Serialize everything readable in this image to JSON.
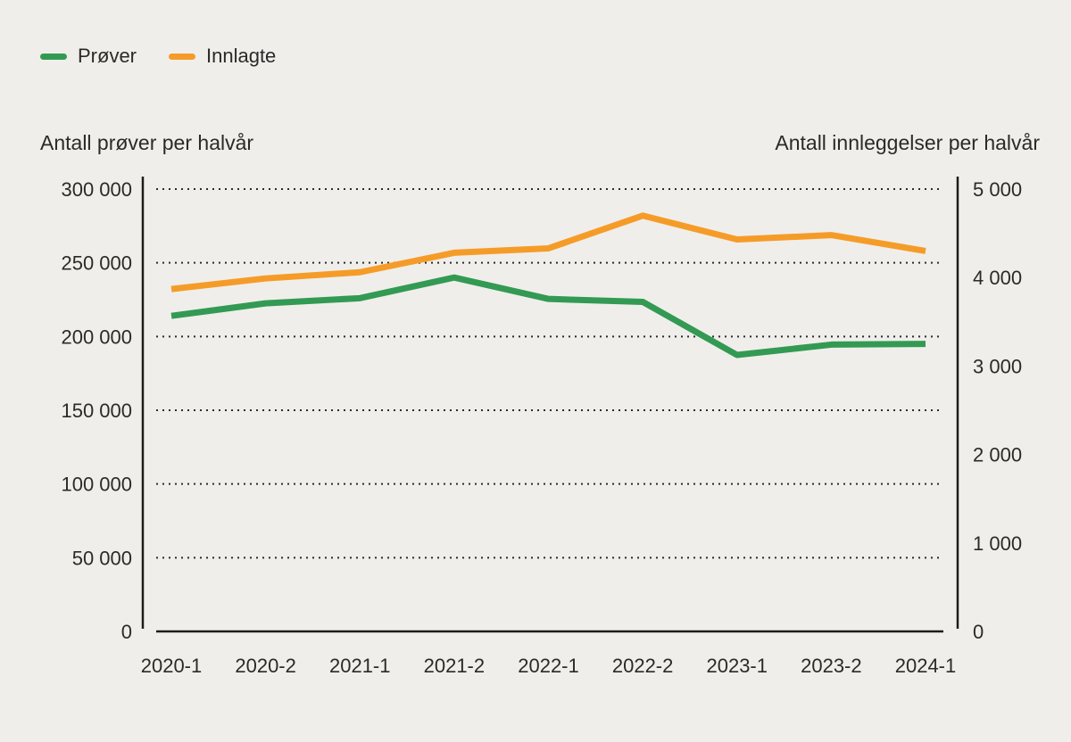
{
  "palette": {
    "background": "#F0EEEB",
    "text": "#2B2A28",
    "axis_line": "#1C1C1C",
    "grid_dot": "#2B2B2B"
  },
  "legend": {
    "position": "top-left",
    "items": [
      {
        "label": "Prøver",
        "color": "#339A53"
      },
      {
        "label": "Innlagte",
        "color": "#F59C28"
      }
    ]
  },
  "chart_data": {
    "type": "line",
    "categories": [
      "2020-1",
      "2020-2",
      "2021-1",
      "2021-2",
      "2022-1",
      "2022-2",
      "2023-1",
      "2023-2",
      "2024-1"
    ],
    "series": [
      {
        "name": "Prøver",
        "axis": "left",
        "color": "#339A53",
        "values": [
          214000,
          222500,
          226000,
          240000,
          225500,
          223500,
          187500,
          194500,
          195000
        ]
      },
      {
        "name": "Innlagte",
        "axis": "right",
        "color": "#F59C28",
        "values": [
          3870,
          3990,
          4060,
          4280,
          4330,
          4700,
          4430,
          4480,
          4300
        ]
      }
    ],
    "left_axis": {
      "title": "Antall prøver per halvår",
      "range": [
        0,
        300000
      ],
      "ticks": [
        {
          "value": 300000,
          "label": "300 000"
        },
        {
          "value": 250000,
          "label": "250 000"
        },
        {
          "value": 200000,
          "label": "200 000"
        },
        {
          "value": 150000,
          "label": "150 000"
        },
        {
          "value": 100000,
          "label": "100 000"
        },
        {
          "value": 50000,
          "label": "50 000"
        },
        {
          "value": 0,
          "label": "0"
        }
      ]
    },
    "right_axis": {
      "title": "Antall innleggelser per halvår",
      "range": [
        0,
        5000
      ],
      "ticks": [
        {
          "value": 5000,
          "label": "5 000"
        },
        {
          "value": 4000,
          "label": "4 000"
        },
        {
          "value": 3000,
          "label": "3 000"
        },
        {
          "value": 2000,
          "label": "2 000"
        },
        {
          "value": 1000,
          "label": "1 000"
        },
        {
          "value": 0,
          "label": "0"
        }
      ]
    },
    "grid": {
      "style": "dotted-horizontal",
      "at": "left-axis-ticks-above-zero"
    }
  }
}
